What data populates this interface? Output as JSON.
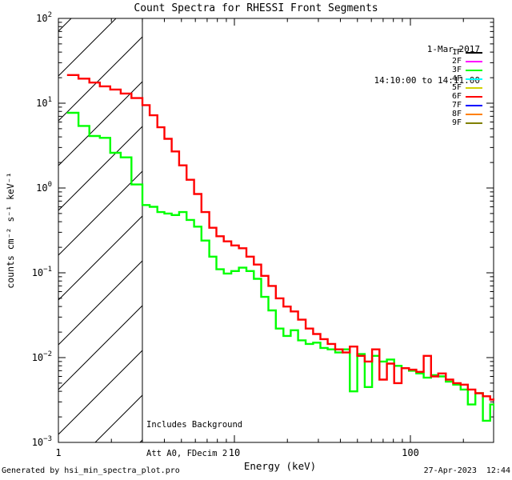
{
  "title": "Count Spectra for RHESSI Front Segments",
  "header": {
    "date": "1-Mar-2017",
    "time_range": "14:10:00 to 14:11:00"
  },
  "annotations": {
    "line1": "Includes Background",
    "line2": "Att A0, FDecim 2"
  },
  "footer": {
    "generated_by": "Generated by hsi_min_spectra_plot.pro",
    "timestamp": "27-Apr-2023  12:44"
  },
  "legend": [
    {
      "label": "1F",
      "color": "#000000"
    },
    {
      "label": "2F",
      "color": "#ff00ff"
    },
    {
      "label": "3F",
      "color": "#00ff00"
    },
    {
      "label": "4F",
      "color": "#00ffff"
    },
    {
      "label": "5F",
      "color": "#d2d200"
    },
    {
      "label": "6F",
      "color": "#ff0000"
    },
    {
      "label": "7F",
      "color": "#0000ff"
    },
    {
      "label": "8F",
      "color": "#ff8000"
    },
    {
      "label": "9F",
      "color": "#808000"
    }
  ],
  "chart_data": {
    "type": "line",
    "subtype": "step-histogram",
    "title": "Count Spectra for RHESSI Front Segments",
    "xlabel": "Energy (keV)",
    "ylabel": "counts cm⁻² s⁻¹ keV⁻¹",
    "xscale": "log",
    "yscale": "log",
    "xlim": [
      1,
      300
    ],
    "ylim": [
      0.001,
      100
    ],
    "grid": false,
    "legend_position": "upper right",
    "x_tick_values": [
      1,
      10,
      100
    ],
    "x_tick_labels": [
      "1",
      "10",
      "100"
    ],
    "y_tick_values": [
      100,
      10,
      1,
      0.1,
      0.01,
      0.001
    ],
    "y_tick_exponents": [
      "2",
      "1",
      "0",
      "−1",
      "−2",
      "−3"
    ],
    "hatch_region": {
      "from_kev": 1,
      "to_kev": 3,
      "style": "diagonal-hatch"
    },
    "x": [
      1.12,
      1.3,
      1.5,
      1.72,
      1.97,
      2.26,
      2.6,
      3.0,
      3.3,
      3.65,
      4.0,
      4.4,
      4.85,
      5.35,
      5.9,
      6.5,
      7.2,
      7.9,
      8.7,
      9.6,
      10.6,
      11.7,
      12.9,
      14.2,
      15.6,
      17.2,
      19.0,
      20.9,
      23.0,
      25.4,
      28.0,
      30.8,
      33.9,
      37.4,
      41.2,
      45.3,
      49.9,
      55.0,
      60.6,
      66.7,
      73.5,
      80.9,
      89.1,
      98.1,
      108,
      119,
      131,
      144,
      159,
      175,
      193,
      212,
      234,
      258,
      284,
      300
    ],
    "series": [
      {
        "name": "3F",
        "color": "#00ff00",
        "values": [
          7.7,
          5.4,
          4.1,
          3.9,
          2.6,
          2.3,
          1.1,
          0.63,
          0.6,
          0.52,
          0.5,
          0.48,
          0.52,
          0.42,
          0.35,
          0.24,
          0.155,
          0.11,
          0.098,
          0.105,
          0.115,
          0.105,
          0.085,
          0.052,
          0.036,
          0.022,
          0.018,
          0.021,
          0.016,
          0.0145,
          0.015,
          0.013,
          0.0125,
          0.0115,
          0.0125,
          0.004,
          0.011,
          0.0045,
          0.0105,
          0.009,
          0.0095,
          0.008,
          0.0075,
          0.007,
          0.0065,
          0.0058,
          0.0062,
          0.006,
          0.0052,
          0.0048,
          0.0042,
          0.0028,
          0.0038,
          0.0018,
          0.0028,
          0.0024
        ]
      },
      {
        "name": "6F",
        "color": "#ff0000",
        "values": [
          21.5,
          19.5,
          17.5,
          15.8,
          14.5,
          13,
          11.5,
          9.5,
          7.2,
          5.2,
          3.8,
          2.7,
          1.85,
          1.25,
          0.85,
          0.52,
          0.34,
          0.27,
          0.235,
          0.21,
          0.195,
          0.155,
          0.125,
          0.092,
          0.07,
          0.05,
          0.04,
          0.035,
          0.028,
          0.022,
          0.019,
          0.0165,
          0.0145,
          0.0125,
          0.0115,
          0.0135,
          0.0105,
          0.009,
          0.0125,
          0.0055,
          0.0085,
          0.005,
          0.0075,
          0.0072,
          0.0068,
          0.0105,
          0.006,
          0.0065,
          0.0055,
          0.005,
          0.0048,
          0.0042,
          0.0038,
          0.0035,
          0.0032,
          0.0033
        ]
      }
    ]
  }
}
